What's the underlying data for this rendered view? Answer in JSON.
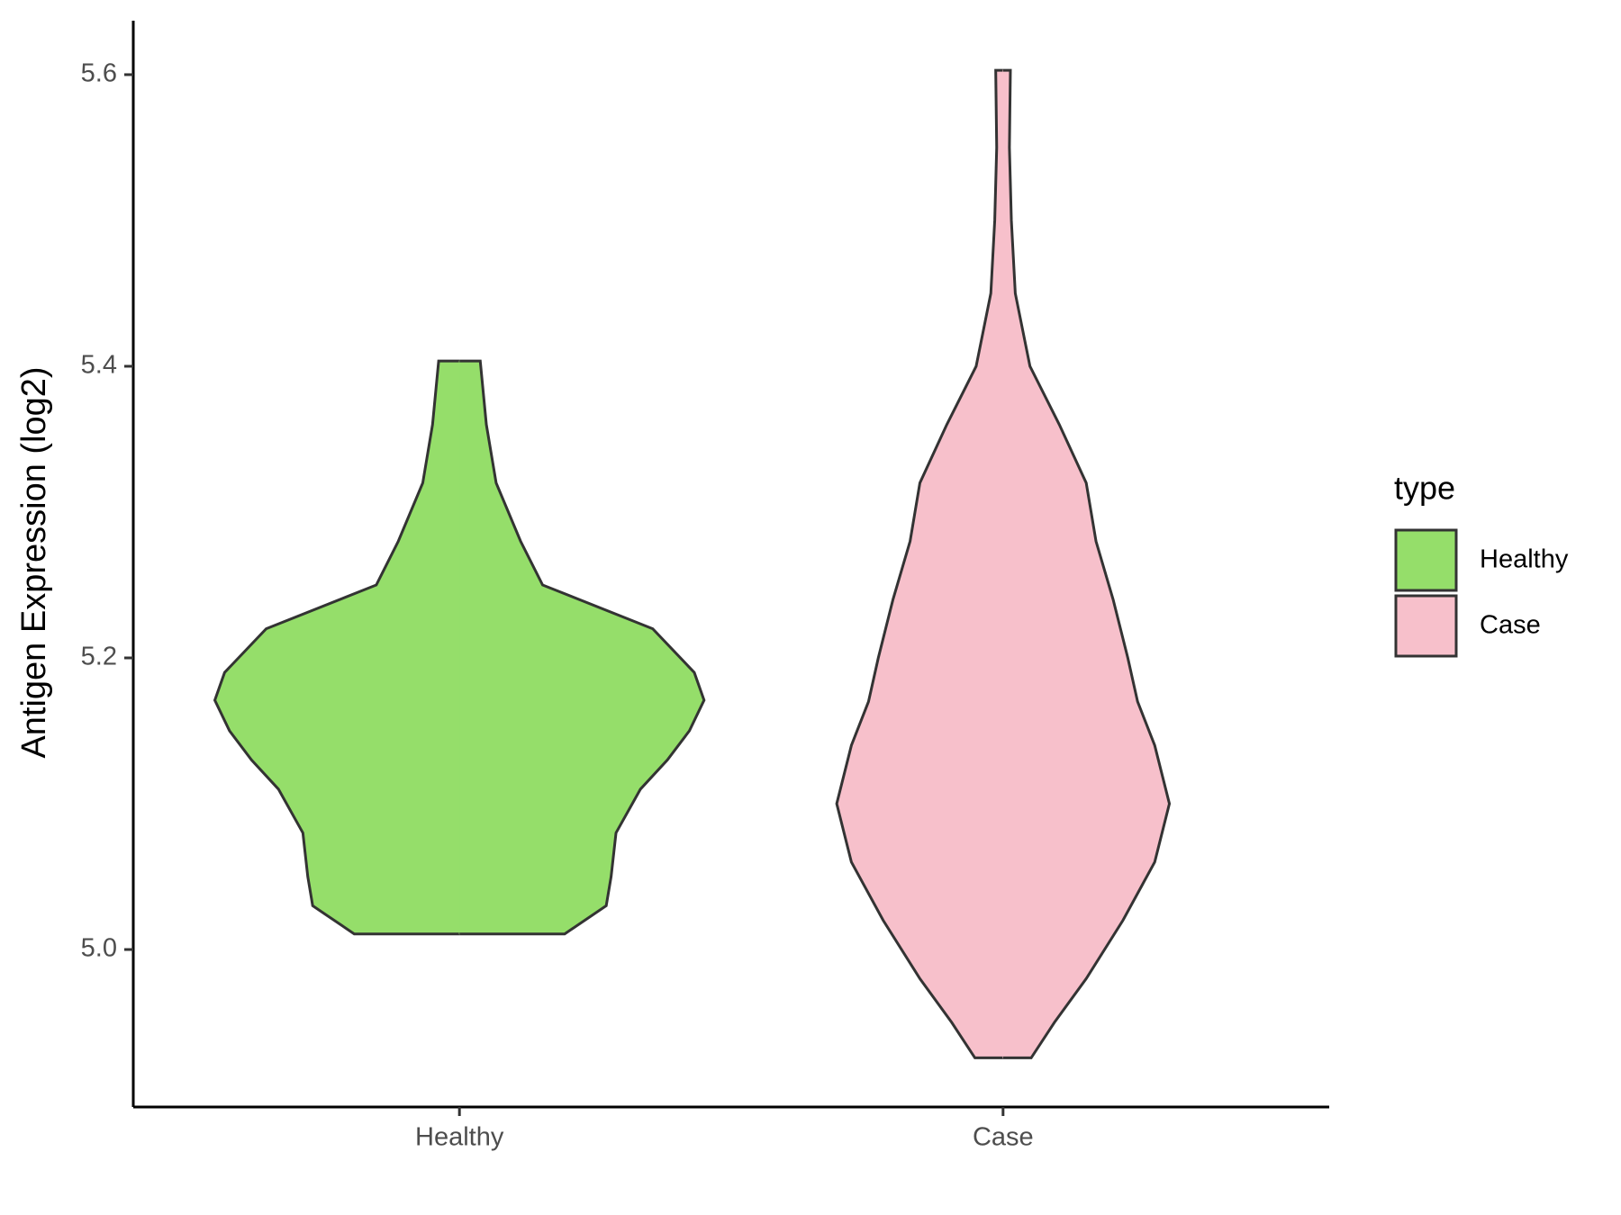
{
  "chart_data": {
    "type": "violin",
    "y_label": "Antigen Expression (log2)",
    "legend_title": "type",
    "categories": [
      "Healthy",
      "Case"
    ],
    "series": [
      {
        "name": "Healthy",
        "color": "#95de6a",
        "y": [
          5.0107,
          5.03,
          5.05,
          5.08,
          5.11,
          5.13,
          5.15,
          5.171,
          5.19,
          5.22,
          5.25,
          5.28,
          5.32,
          5.36,
          5.4036
        ],
        "density": [
          0.43,
          0.6,
          0.62,
          0.64,
          0.74,
          0.85,
          0.94,
          1,
          0.96,
          0.79,
          0.34,
          0.25,
          0.15,
          0.11,
          0.085
        ]
      },
      {
        "name": "Case",
        "color": "#f7c0cb",
        "y": [
          4.9257,
          4.95,
          4.98,
          5.02,
          5.06,
          5.1,
          5.14,
          5.17,
          5.2,
          5.24,
          5.28,
          5.32,
          5.36,
          5.4,
          5.45,
          5.5,
          5.55,
          5.603
        ],
        "density": [
          0.115,
          0.21,
          0.34,
          0.49,
          0.62,
          0.68,
          0.62,
          0.55,
          0.51,
          0.45,
          0.38,
          0.34,
          0.23,
          0.11,
          0.05,
          0.034,
          0.026,
          0.03
        ]
      }
    ],
    "ylim": [
      4.892,
      5.637
    ],
    "yticks": [
      {
        "value": 5,
        "label": "5.0"
      },
      5.2,
      5.4,
      5.6
    ]
  }
}
